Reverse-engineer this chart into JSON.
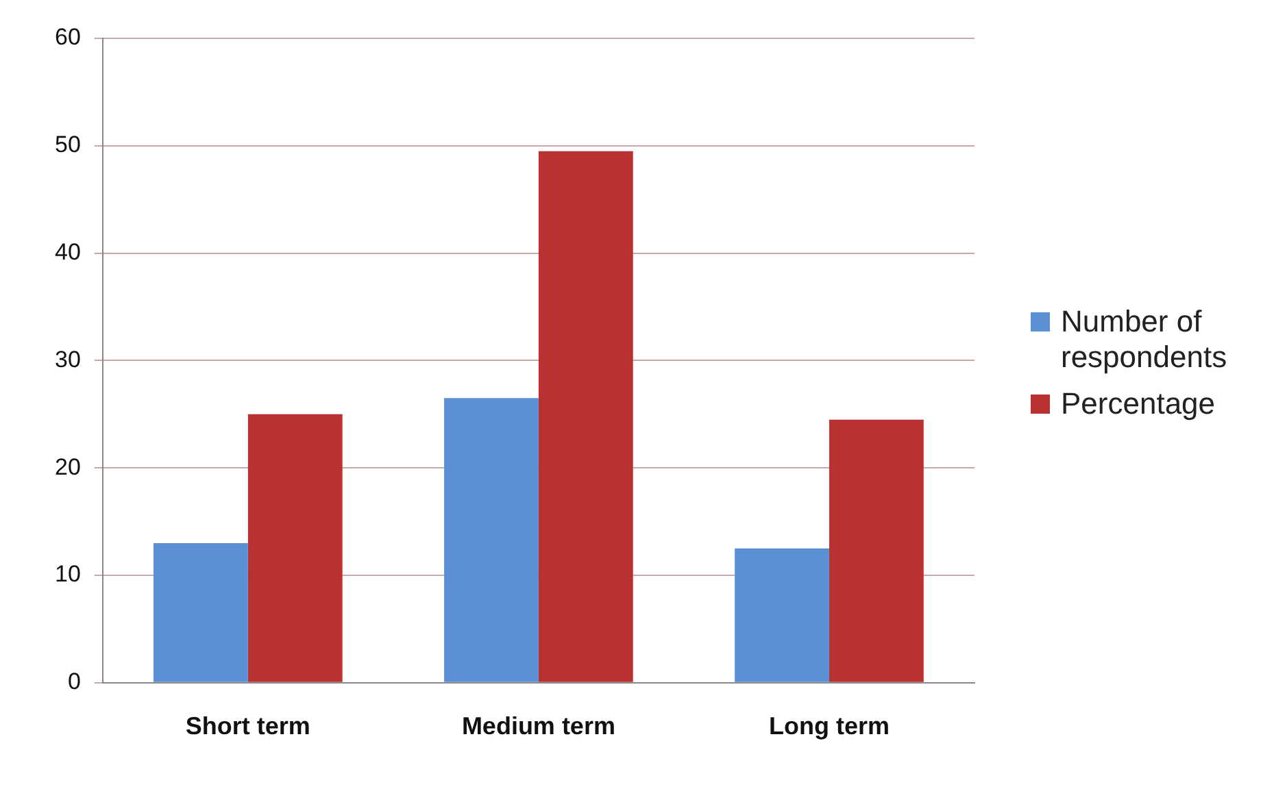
{
  "chart_data": {
    "type": "bar",
    "categories": [
      "Short term",
      "Medium term",
      "Long term"
    ],
    "series": [
      {
        "name": "Number of respondents",
        "color": "#5b8fd4",
        "values": [
          13,
          26.5,
          12.5
        ]
      },
      {
        "name": "Percentage",
        "color": "#b83232",
        "values": [
          25,
          49.5,
          24.5
        ]
      }
    ],
    "ylim": [
      0,
      60
    ],
    "yticks": [
      0,
      10,
      20,
      30,
      40,
      50,
      60
    ],
    "grid": "y",
    "legend": "right"
  }
}
